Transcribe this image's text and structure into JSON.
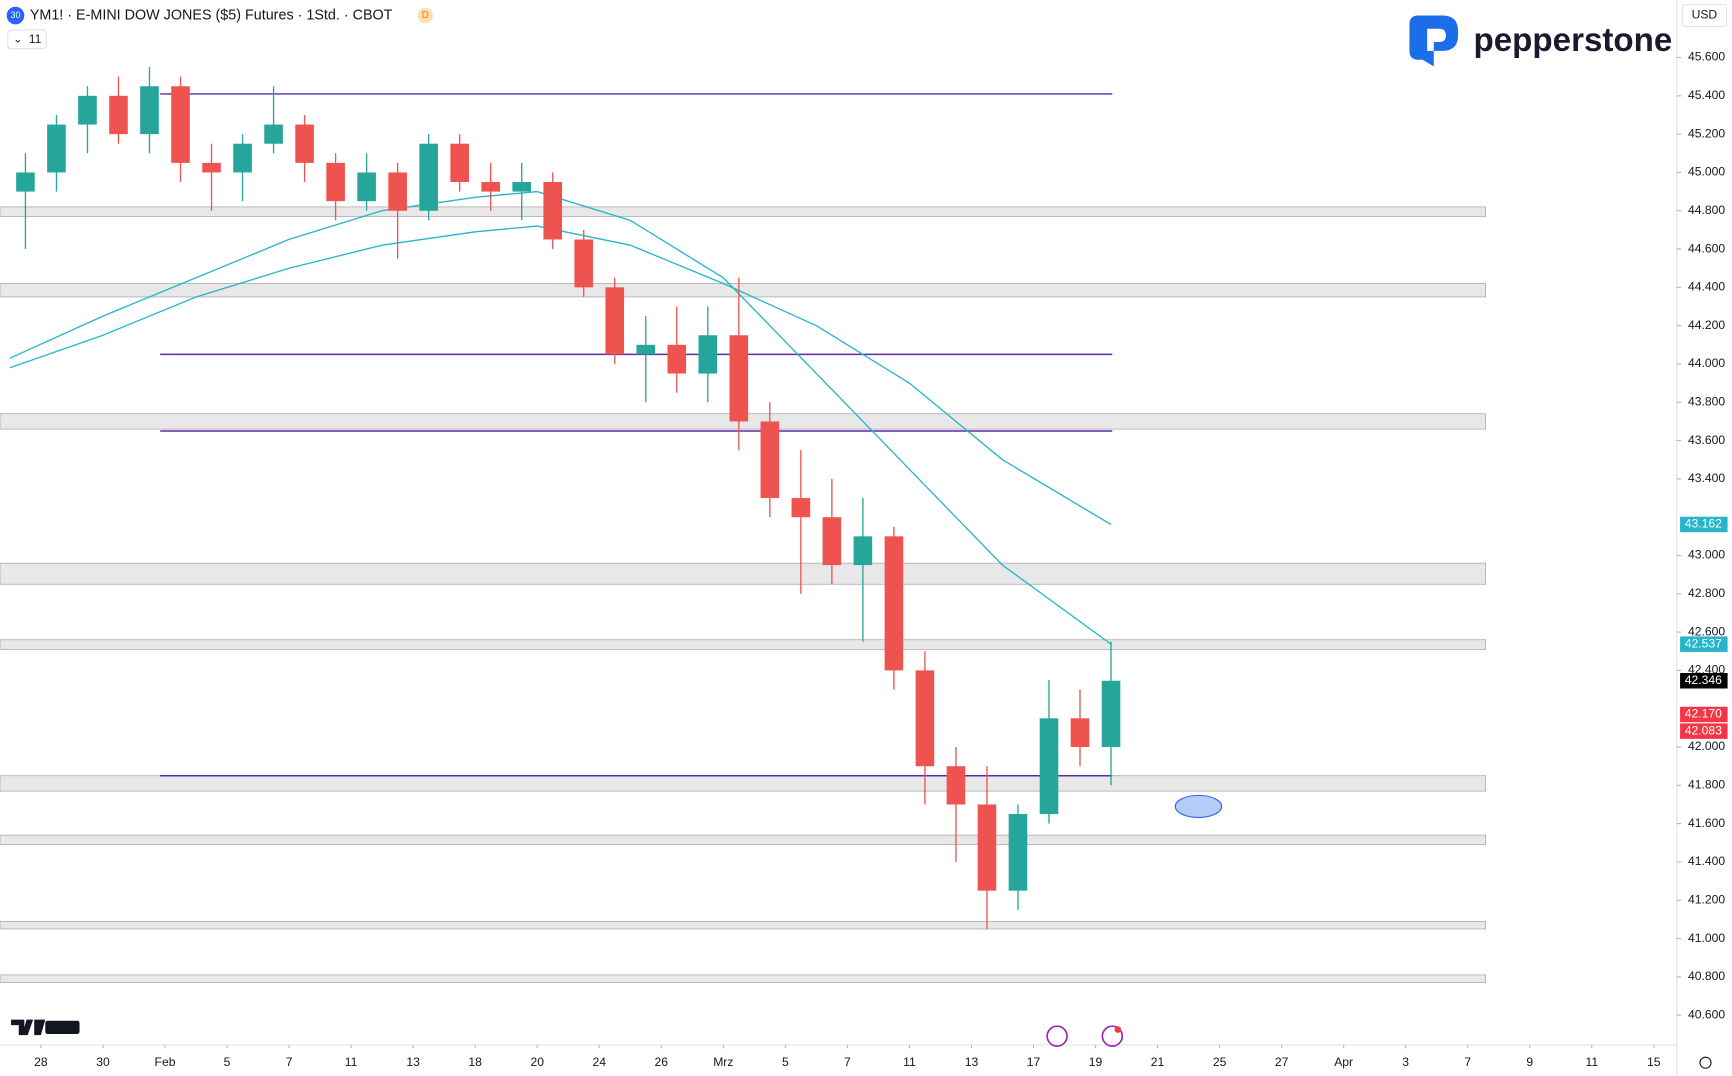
{
  "chart_data": {
    "type": "candlestick",
    "title": "YM1! · E-MINI DOW JONES ($5) Futures · 1Std. · CBOT",
    "interval_badge": "D",
    "symbol_badge": "30",
    "indicator_count": "11",
    "currency": "USD",
    "brand": "pepperstone",
    "up_color": "#26a69a",
    "down_color": "#ef5350",
    "xlim": [
      -1.32,
      52.74
    ],
    "ylim": [
      40450,
      45900
    ],
    "xticks": [
      {
        "value": 0,
        "label": "28"
      },
      {
        "value": 2,
        "label": "30"
      },
      {
        "value": 4,
        "label": "Feb"
      },
      {
        "value": 6,
        "label": "5"
      },
      {
        "value": 8,
        "label": "7"
      },
      {
        "value": 10,
        "label": "11"
      },
      {
        "value": 12,
        "label": "13"
      },
      {
        "value": 14,
        "label": "18"
      },
      {
        "value": 16,
        "label": "20"
      },
      {
        "value": 18,
        "label": "24"
      },
      {
        "value": 20,
        "label": "26"
      },
      {
        "value": 22,
        "label": "Mrz"
      },
      {
        "value": 24,
        "label": "5"
      },
      {
        "value": 26,
        "label": "7"
      },
      {
        "value": 28,
        "label": "11"
      },
      {
        "value": 30,
        "label": "13"
      },
      {
        "value": 32,
        "label": "17"
      },
      {
        "value": 34,
        "label": "19"
      },
      {
        "value": 36,
        "label": "21"
      },
      {
        "value": 38,
        "label": "25"
      },
      {
        "value": 40,
        "label": "27"
      },
      {
        "value": 42,
        "label": "Apr"
      },
      {
        "value": 44,
        "label": "3"
      },
      {
        "value": 46,
        "label": "7"
      },
      {
        "value": 48,
        "label": "9"
      },
      {
        "value": 50,
        "label": "11"
      },
      {
        "value": 52,
        "label": "15"
      }
    ],
    "yticks": [
      {
        "value": 40600,
        "label": "40.600"
      },
      {
        "value": 40800,
        "label": "40.800"
      },
      {
        "value": 41000,
        "label": "41.000"
      },
      {
        "value": 41200,
        "label": "41.200"
      },
      {
        "value": 41400,
        "label": "41.400"
      },
      {
        "value": 41600,
        "label": "41.600"
      },
      {
        "value": 41800,
        "label": "41.800"
      },
      {
        "value": 42000,
        "label": "42.000"
      },
      {
        "value": 42400,
        "label": "42.400"
      },
      {
        "value": 42600,
        "label": "42.600"
      },
      {
        "value": 42800,
        "label": "42.800"
      },
      {
        "value": 43000,
        "label": "43.000"
      },
      {
        "value": 43400,
        "label": "43.400"
      },
      {
        "value": 43600,
        "label": "43.600"
      },
      {
        "value": 43800,
        "label": "43.800"
      },
      {
        "value": 44000,
        "label": "44.000"
      },
      {
        "value": 44200,
        "label": "44.200"
      },
      {
        "value": 44400,
        "label": "44.400"
      },
      {
        "value": 44600,
        "label": "44.600"
      },
      {
        "value": 44800,
        "label": "44.800"
      },
      {
        "value": 45000,
        "label": "45.000"
      },
      {
        "value": 45200,
        "label": "45.200"
      },
      {
        "value": 45400,
        "label": "45.400"
      },
      {
        "value": 45600,
        "label": "45.600"
      }
    ],
    "x": [
      -1,
      0,
      1,
      2,
      3,
      4,
      5,
      6,
      7,
      8,
      9,
      10,
      11,
      12,
      13,
      14,
      15,
      16,
      17,
      18,
      19,
      20,
      21,
      22,
      23,
      24,
      25,
      26,
      27,
      28,
      29,
      30,
      31,
      32,
      33,
      34
    ],
    "open": [
      44900,
      45000,
      45250,
      45400,
      45200,
      45450,
      45050,
      45000,
      45150,
      45250,
      45050,
      44850,
      45000,
      44800,
      45150,
      44950,
      44900,
      44950,
      44650,
      44400,
      44050,
      44100,
      43950,
      44150,
      43700,
      43300,
      43200,
      42950,
      43100,
      42400,
      41900,
      41700,
      41250,
      41650,
      42150,
      42000
    ],
    "high": [
      45100,
      45300,
      45450,
      45500,
      45550,
      45500,
      45150,
      45200,
      45450,
      45300,
      45100,
      45100,
      45050,
      45200,
      45200,
      45050,
      45050,
      45000,
      44700,
      44450,
      44250,
      44300,
      44300,
      44450,
      43800,
      43550,
      43400,
      43300,
      43150,
      42500,
      42000,
      41900,
      41700,
      42350,
      42300,
      42550
    ],
    "low": [
      44600,
      44900,
      45100,
      45150,
      45100,
      44950,
      44800,
      44850,
      45100,
      44950,
      44750,
      44800,
      44550,
      44750,
      44900,
      44800,
      44750,
      44600,
      44350,
      44000,
      43800,
      43850,
      43800,
      43550,
      43200,
      42800,
      42850,
      42550,
      42300,
      41700,
      41400,
      41050,
      41150,
      41600,
      41900,
      41800
    ],
    "close": [
      45000,
      45250,
      45400,
      45200,
      45450,
      45050,
      45000,
      45150,
      45250,
      45050,
      44850,
      45000,
      44800,
      45150,
      44950,
      44900,
      44950,
      44650,
      44400,
      44050,
      44100,
      43950,
      44150,
      43700,
      43300,
      43200,
      42950,
      43100,
      42400,
      41900,
      41700,
      41250,
      41650,
      42150,
      42000,
      42346
    ],
    "lines": [
      {
        "color": "#26b5c9",
        "x": [
          -1,
          2,
          5,
          8,
          11,
          14,
          16,
          19,
          22,
          25,
          28,
          31,
          34.5
        ],
        "values": [
          44030,
          44250,
          44450,
          44650,
          44800,
          44870,
          44900,
          44750,
          44450,
          43950,
          43450,
          42950,
          42537
        ]
      },
      {
        "color": "#26b5c9",
        "x": [
          -1,
          2,
          5,
          8,
          11,
          14,
          16,
          19,
          22,
          25,
          28,
          31,
          34.5
        ],
        "values": [
          43980,
          44150,
          44350,
          44500,
          44620,
          44690,
          44720,
          44620,
          44420,
          44200,
          43900,
          43500,
          43162
        ]
      }
    ],
    "zones": [
      [
        44770,
        44820
      ],
      [
        44350,
        44420
      ],
      [
        43660,
        43740
      ],
      [
        42850,
        42960
      ],
      [
        42510,
        42560
      ],
      [
        41770,
        41850
      ],
      [
        41490,
        41540
      ],
      [
        41050,
        41090
      ],
      [
        40770,
        40810
      ]
    ],
    "levels": [
      45410,
      44050,
      43650,
      41850
    ],
    "price_labels": [
      {
        "value": 43162,
        "label": "43.162",
        "color": "#26b5c9"
      },
      {
        "value": 42537,
        "label": "42.537",
        "color": "#26b5c9"
      },
      {
        "value": 42346,
        "label": "42.346",
        "color": "#000000"
      },
      {
        "value": 42170,
        "label": "42.170",
        "color": "#f23645"
      },
      {
        "value": 42083,
        "label": "42.083",
        "color": "#f23645"
      }
    ]
  }
}
